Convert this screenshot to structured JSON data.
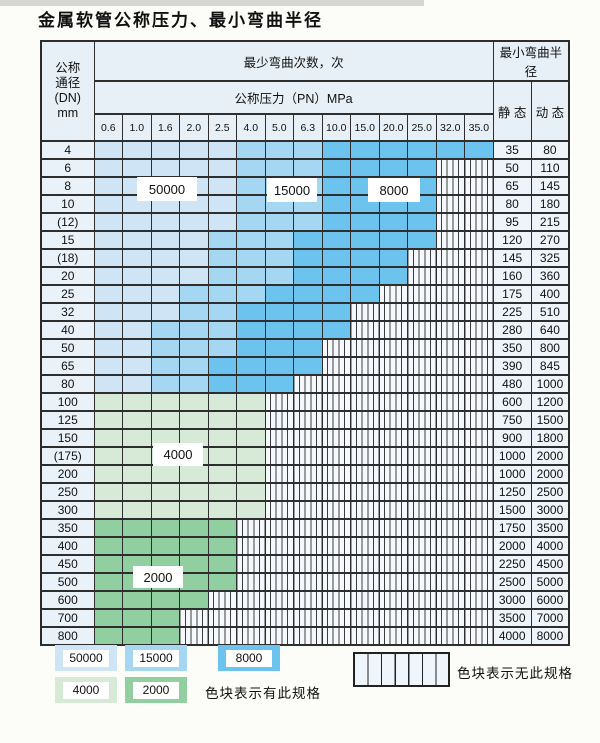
{
  "title": "金属软管公称压力、最小弯曲半径",
  "table": {
    "dn_header_lines": [
      "公称",
      "通径",
      "(DN)",
      "mm"
    ],
    "bend_cycles_header": "最少弯曲次数，次",
    "bend_radius_header": "最小弯曲半径",
    "pressure_header": "公称压力（PN）MPa",
    "static_label": "静 态",
    "dynamic_label": "动 态",
    "pressure_columns": [
      "0.6",
      "1.0",
      "1.6",
      "2.0",
      "2.5",
      "4.0",
      "5.0",
      "6.3",
      "10.0",
      "15.0",
      "20.0",
      "25.0",
      "32.0",
      "35.0"
    ],
    "rows": [
      {
        "dn": "4",
        "static": "35",
        "dynamic": "80",
        "cells": [
          "b1",
          "b1",
          "b1",
          "b1",
          "b1",
          "b2",
          "b2",
          "b2",
          "b3",
          "b3",
          "b3",
          "b3",
          "b3",
          "b3"
        ]
      },
      {
        "dn": "6",
        "static": "50",
        "dynamic": "110",
        "cells": [
          "b1",
          "b1",
          "b1",
          "b1",
          "b1",
          "b2",
          "b2",
          "b2",
          "b3",
          "b3",
          "b3",
          "b3",
          "x",
          "x"
        ]
      },
      {
        "dn": "8",
        "static": "65",
        "dynamic": "145",
        "cells": [
          "b1",
          "b1",
          "b1",
          "b1",
          "b1",
          "b2",
          "b2",
          "b2",
          "b3",
          "b3",
          "b3",
          "b3",
          "x",
          "x"
        ]
      },
      {
        "dn": "10",
        "static": "80",
        "dynamic": "180",
        "cells": [
          "b1",
          "b1",
          "b1",
          "b1",
          "b1",
          "b2",
          "b2",
          "b2",
          "b3",
          "b3",
          "b3",
          "b3",
          "x",
          "x"
        ]
      },
      {
        "dn": "(12)",
        "static": "95",
        "dynamic": "215",
        "cells": [
          "b1",
          "b1",
          "b1",
          "b1",
          "b1",
          "b2",
          "b2",
          "b2",
          "b3",
          "b3",
          "b3",
          "b3",
          "x",
          "x"
        ]
      },
      {
        "dn": "15",
        "static": "120",
        "dynamic": "270",
        "cells": [
          "b1",
          "b1",
          "b1",
          "b1",
          "b2",
          "b2",
          "b2",
          "b3",
          "b3",
          "b3",
          "b3",
          "b3",
          "x",
          "x"
        ]
      },
      {
        "dn": "(18)",
        "static": "145",
        "dynamic": "325",
        "cells": [
          "b1",
          "b1",
          "b1",
          "b1",
          "b2",
          "b2",
          "b2",
          "b3",
          "b3",
          "b3",
          "b3",
          "x",
          "x",
          "x"
        ]
      },
      {
        "dn": "20",
        "static": "160",
        "dynamic": "360",
        "cells": [
          "b1",
          "b1",
          "b1",
          "b1",
          "b2",
          "b2",
          "b2",
          "b3",
          "b3",
          "b3",
          "b3",
          "x",
          "x",
          "x"
        ]
      },
      {
        "dn": "25",
        "static": "175",
        "dynamic": "400",
        "cells": [
          "b1",
          "b1",
          "b1",
          "b2",
          "b2",
          "b2",
          "b3",
          "b3",
          "b3",
          "b3",
          "x",
          "x",
          "x",
          "x"
        ]
      },
      {
        "dn": "32",
        "static": "225",
        "dynamic": "510",
        "cells": [
          "b1",
          "b1",
          "b1",
          "b2",
          "b2",
          "b3",
          "b3",
          "b3",
          "b3",
          "x",
          "x",
          "x",
          "x",
          "x"
        ]
      },
      {
        "dn": "40",
        "static": "280",
        "dynamic": "640",
        "cells": [
          "b1",
          "b1",
          "b2",
          "b2",
          "b2",
          "b3",
          "b3",
          "b3",
          "b3",
          "x",
          "x",
          "x",
          "x",
          "x"
        ]
      },
      {
        "dn": "50",
        "static": "350",
        "dynamic": "800",
        "cells": [
          "b1",
          "b1",
          "b2",
          "b2",
          "b2",
          "b3",
          "b3",
          "b3",
          "x",
          "x",
          "x",
          "x",
          "x",
          "x"
        ]
      },
      {
        "dn": "65",
        "static": "390",
        "dynamic": "845",
        "cells": [
          "b1",
          "b1",
          "b2",
          "b2",
          "b3",
          "b3",
          "b3",
          "b3",
          "x",
          "x",
          "x",
          "x",
          "x",
          "x"
        ]
      },
      {
        "dn": "80",
        "static": "480",
        "dynamic": "1000",
        "cells": [
          "b1",
          "b1",
          "b2",
          "b2",
          "b3",
          "b3",
          "b3",
          "x",
          "x",
          "x",
          "x",
          "x",
          "x",
          "x"
        ]
      },
      {
        "dn": "100",
        "static": "600",
        "dynamic": "1200",
        "cells": [
          "g1",
          "g1",
          "g1",
          "g1",
          "g1",
          "g1",
          "x",
          "x",
          "x",
          "x",
          "x",
          "x",
          "x",
          "x"
        ]
      },
      {
        "dn": "125",
        "static": "750",
        "dynamic": "1500",
        "cells": [
          "g1",
          "g1",
          "g1",
          "g1",
          "g1",
          "g1",
          "x",
          "x",
          "x",
          "x",
          "x",
          "x",
          "x",
          "x"
        ]
      },
      {
        "dn": "150",
        "static": "900",
        "dynamic": "1800",
        "cells": [
          "g1",
          "g1",
          "g1",
          "g1",
          "g1",
          "g1",
          "x",
          "x",
          "x",
          "x",
          "x",
          "x",
          "x",
          "x"
        ]
      },
      {
        "dn": "(175)",
        "static": "1000",
        "dynamic": "2000",
        "cells": [
          "g1",
          "g1",
          "g1",
          "g1",
          "g1",
          "g1",
          "x",
          "x",
          "x",
          "x",
          "x",
          "x",
          "x",
          "x"
        ]
      },
      {
        "dn": "200",
        "static": "1000",
        "dynamic": "2000",
        "cells": [
          "g1",
          "g1",
          "g1",
          "g1",
          "g1",
          "g1",
          "x",
          "x",
          "x",
          "x",
          "x",
          "x",
          "x",
          "x"
        ]
      },
      {
        "dn": "250",
        "static": "1250",
        "dynamic": "2500",
        "cells": [
          "g1",
          "g1",
          "g1",
          "g1",
          "g1",
          "g1",
          "x",
          "x",
          "x",
          "x",
          "x",
          "x",
          "x",
          "x"
        ]
      },
      {
        "dn": "300",
        "static": "1500",
        "dynamic": "3000",
        "cells": [
          "g1",
          "g1",
          "g1",
          "g1",
          "g1",
          "g1",
          "x",
          "x",
          "x",
          "x",
          "x",
          "x",
          "x",
          "x"
        ]
      },
      {
        "dn": "350",
        "static": "1750",
        "dynamic": "3500",
        "cells": [
          "g2",
          "g2",
          "g2",
          "g2",
          "g2",
          "x",
          "x",
          "x",
          "x",
          "x",
          "x",
          "x",
          "x",
          "x"
        ]
      },
      {
        "dn": "400",
        "static": "2000",
        "dynamic": "4000",
        "cells": [
          "g2",
          "g2",
          "g2",
          "g2",
          "g2",
          "x",
          "x",
          "x",
          "x",
          "x",
          "x",
          "x",
          "x",
          "x"
        ]
      },
      {
        "dn": "450",
        "static": "2250",
        "dynamic": "4500",
        "cells": [
          "g2",
          "g2",
          "g2",
          "g2",
          "g2",
          "x",
          "x",
          "x",
          "x",
          "x",
          "x",
          "x",
          "x",
          "x"
        ]
      },
      {
        "dn": "500",
        "static": "2500",
        "dynamic": "5000",
        "cells": [
          "g2",
          "g2",
          "g2",
          "g2",
          "g2",
          "x",
          "x",
          "x",
          "x",
          "x",
          "x",
          "x",
          "x",
          "x"
        ]
      },
      {
        "dn": "600",
        "static": "3000",
        "dynamic": "6000",
        "cells": [
          "g2",
          "g2",
          "g2",
          "g2",
          "x",
          "x",
          "x",
          "x",
          "x",
          "x",
          "x",
          "x",
          "x",
          "x"
        ]
      },
      {
        "dn": "700",
        "static": "3500",
        "dynamic": "7000",
        "cells": [
          "g2",
          "g2",
          "g2",
          "x",
          "x",
          "x",
          "x",
          "x",
          "x",
          "x",
          "x",
          "x",
          "x",
          "x"
        ]
      },
      {
        "dn": "800",
        "static": "4000",
        "dynamic": "8000",
        "cells": [
          "g2",
          "g2",
          "g2",
          "x",
          "x",
          "x",
          "x",
          "x",
          "x",
          "x",
          "x",
          "x",
          "x",
          "x"
        ]
      }
    ]
  },
  "zone_labels": [
    {
      "text": "50000"
    },
    {
      "text": "15000"
    },
    {
      "text": "8000"
    },
    {
      "text": "4000"
    },
    {
      "text": "2000"
    }
  ],
  "cell_colors": {
    "b1": {
      "hex": "#cfe4f4",
      "means": "50000"
    },
    "b2": {
      "hex": "#a6d7f2",
      "means": "15000"
    },
    "b3": {
      "hex": "#6cc4ee",
      "means": "8000"
    },
    "g1": {
      "hex": "#d6ead7",
      "means": "4000"
    },
    "g2": {
      "hex": "#92cfa0",
      "means": "2000"
    },
    "x": {
      "hex": "striped",
      "means": "无此规格"
    }
  },
  "legend": {
    "items": [
      {
        "value": "50000",
        "color": "b1"
      },
      {
        "value": "15000",
        "color": "b2"
      },
      {
        "value": "8000",
        "color": "b3"
      },
      {
        "value": "4000",
        "color": "g1"
      },
      {
        "value": "2000",
        "color": "g2"
      }
    ],
    "exists_text": "色块表示有此规格",
    "none_text": "色块表示无此规格"
  }
}
